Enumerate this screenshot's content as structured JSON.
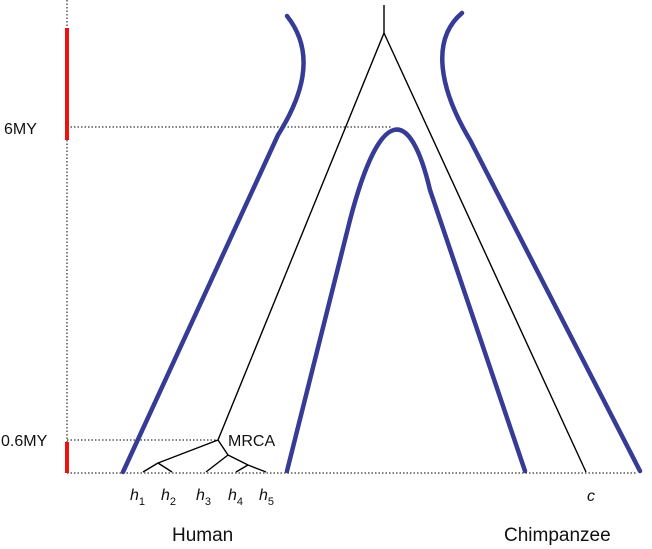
{
  "time_axis": {
    "labels": [
      "6MY",
      "0.6MY"
    ]
  },
  "node_label": "MRCA",
  "leaves": {
    "human": [
      {
        "letter": "h",
        "index": "1"
      },
      {
        "letter": "h",
        "index": "2"
      },
      {
        "letter": "h",
        "index": "3"
      },
      {
        "letter": "h",
        "index": "4"
      },
      {
        "letter": "h",
        "index": "5"
      }
    ],
    "chimp": {
      "letter": "c"
    }
  },
  "species": {
    "human": "Human",
    "chimpanzee": "Chimpanzee"
  },
  "colors": {
    "species_outline": "#363b95",
    "time_bar": "#ee1111",
    "tree": "#000000"
  }
}
